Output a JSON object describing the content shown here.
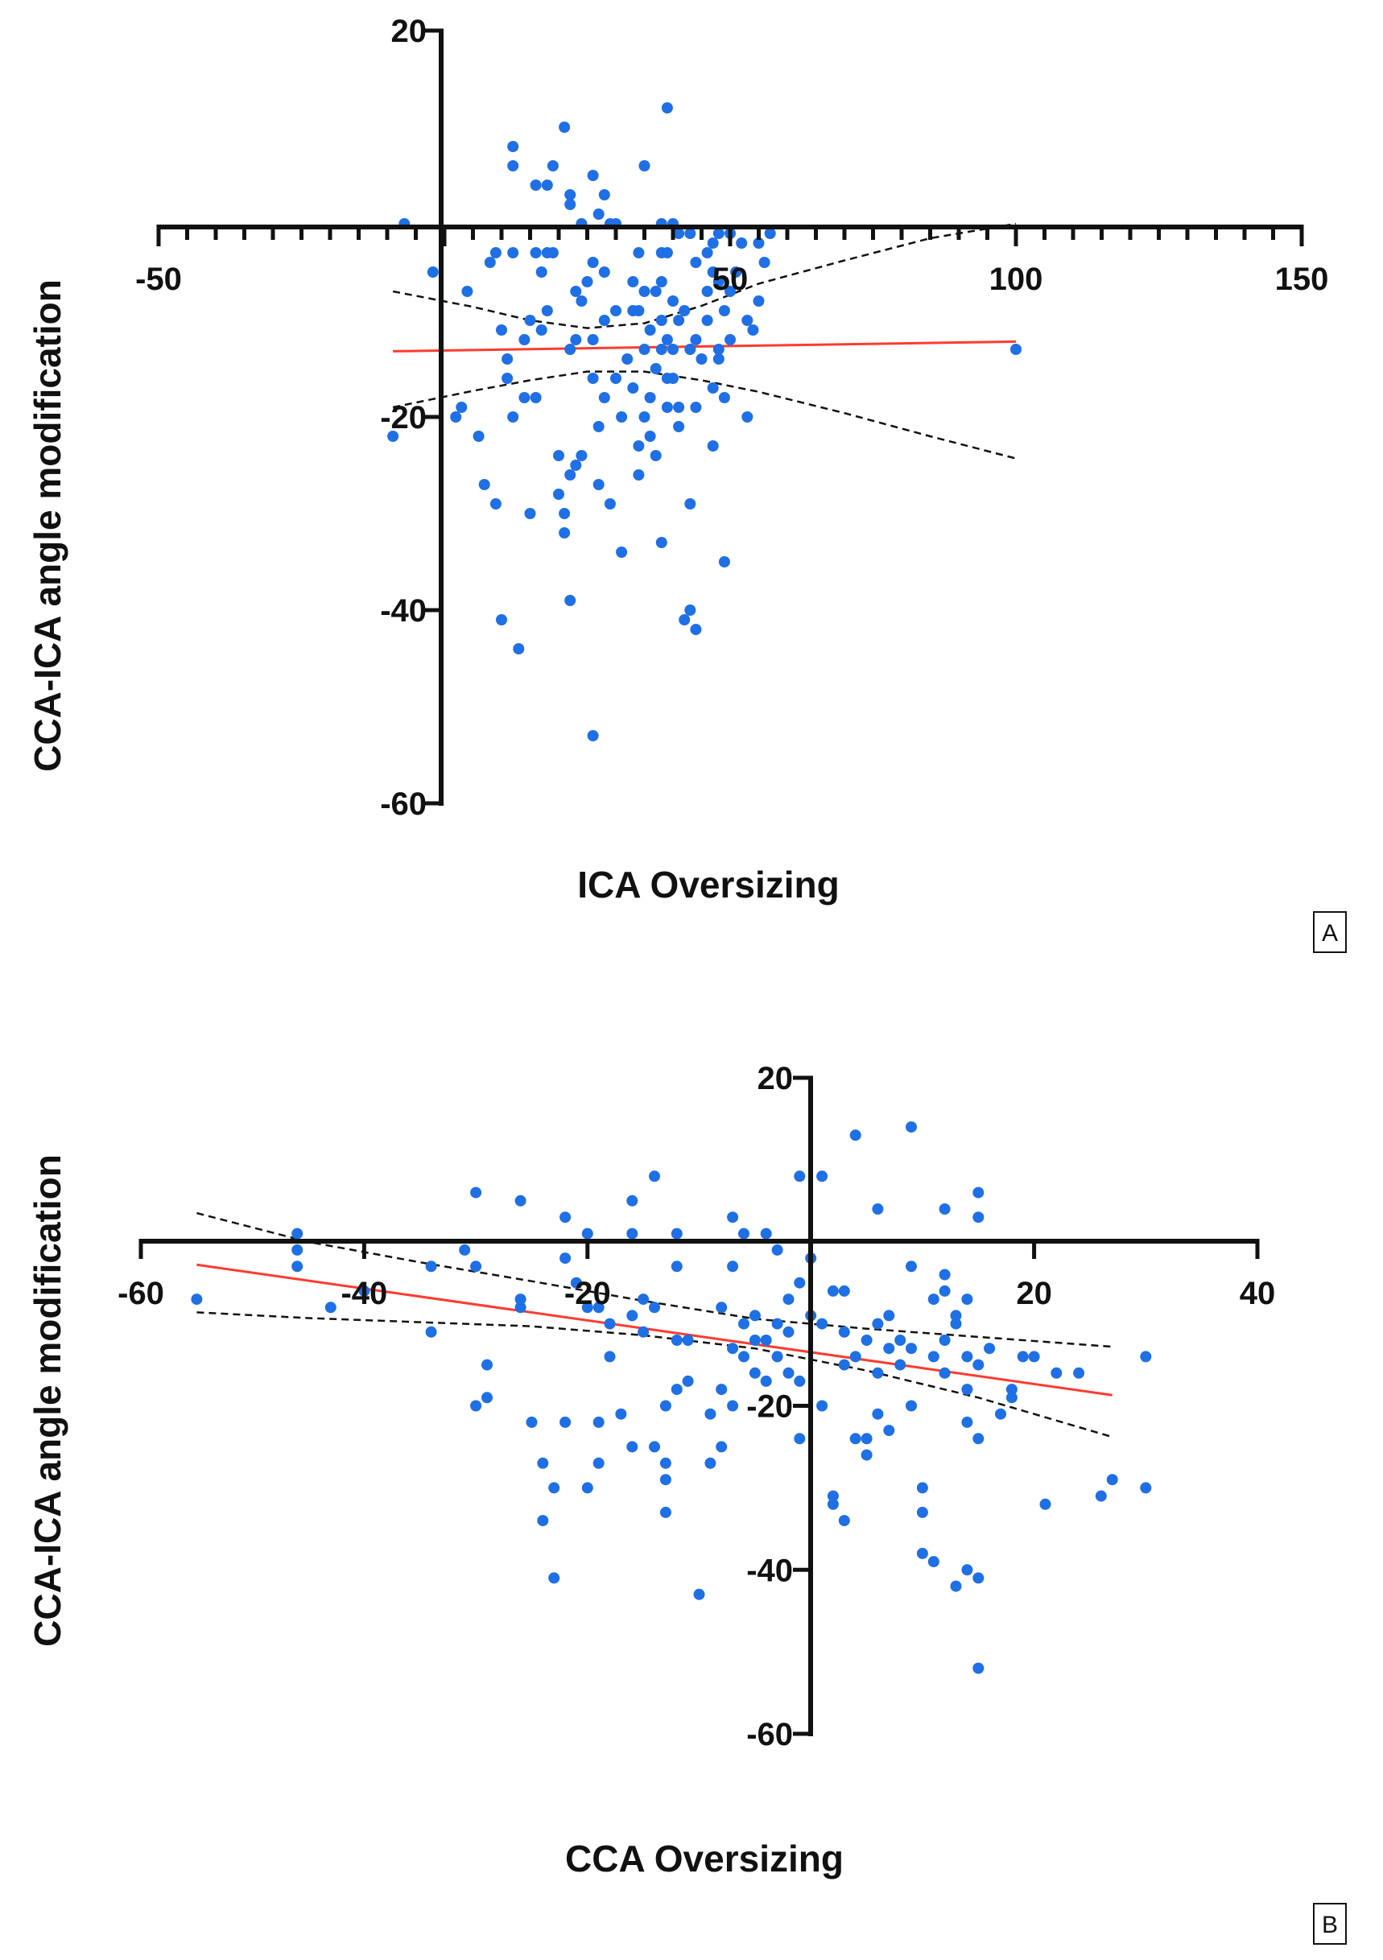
{
  "chart_data": [
    {
      "type": "scatter",
      "panel_label": "A",
      "xlabel": "ICA Oversizing",
      "ylabel": "CCA-ICA angle modification",
      "xlim": [
        -50,
        150
      ],
      "ylim": [
        -60,
        20
      ],
      "x_ticks": [
        -50,
        50,
        100,
        150
      ],
      "y_ticks": [
        20,
        -20,
        -40,
        -60
      ],
      "colors": {
        "points": "#1f6fe5",
        "fit": "#ff3b30",
        "ci": "#111111"
      },
      "points": [
        [
          -7,
          0
        ],
        [
          -2,
          -5
        ],
        [
          -9,
          -22
        ],
        [
          2,
          -20
        ],
        [
          4,
          -7
        ],
        [
          3,
          -19
        ],
        [
          6,
          -22
        ],
        [
          7,
          -27
        ],
        [
          9,
          -29
        ],
        [
          10,
          -41
        ],
        [
          13,
          -44
        ],
        [
          8,
          -4
        ],
        [
          9,
          -3
        ],
        [
          12,
          -3
        ],
        [
          10,
          -11
        ],
        [
          11,
          -16
        ],
        [
          11,
          -14
        ],
        [
          12,
          -20
        ],
        [
          14,
          -12
        ],
        [
          14,
          -18
        ],
        [
          15,
          -10
        ],
        [
          15,
          -30
        ],
        [
          16,
          -3
        ],
        [
          16,
          -18
        ],
        [
          17,
          -5
        ],
        [
          17,
          -11
        ],
        [
          18,
          -3
        ],
        [
          18,
          -9
        ],
        [
          19,
          -3
        ],
        [
          20,
          -24
        ],
        [
          20,
          -28
        ],
        [
          21,
          -30
        ],
        [
          21,
          -32
        ],
        [
          22,
          -13
        ],
        [
          22,
          -26
        ],
        [
          22,
          -39
        ],
        [
          23,
          -7
        ],
        [
          23,
          -12
        ],
        [
          23,
          -25
        ],
        [
          24,
          -8
        ],
        [
          24,
          -24
        ],
        [
          25,
          -6
        ],
        [
          26,
          -4
        ],
        [
          26,
          -12
        ],
        [
          26,
          -16
        ],
        [
          26,
          -53
        ],
        [
          27,
          -21
        ],
        [
          27,
          -27
        ],
        [
          28,
          -5
        ],
        [
          28,
          -10
        ],
        [
          28,
          -18
        ],
        [
          29,
          -29
        ],
        [
          30,
          -9
        ],
        [
          30,
          -16
        ],
        [
          31,
          -20
        ],
        [
          31,
          -34
        ],
        [
          32,
          -14
        ],
        [
          33,
          -6
        ],
        [
          33,
          -9
        ],
        [
          33,
          -17
        ],
        [
          34,
          -3
        ],
        [
          34,
          -9
        ],
        [
          34,
          -23
        ],
        [
          34,
          -26
        ],
        [
          35,
          -13
        ],
        [
          35,
          -7
        ],
        [
          35,
          -20
        ],
        [
          36,
          -11
        ],
        [
          36,
          -18
        ],
        [
          36,
          -22
        ],
        [
          37,
          -7
        ],
        [
          37,
          -15
        ],
        [
          37,
          -24
        ],
        [
          38,
          -3
        ],
        [
          38,
          -6
        ],
        [
          38,
          -10
        ],
        [
          38,
          -13
        ],
        [
          38,
          -33
        ],
        [
          39,
          -3
        ],
        [
          39,
          -12
        ],
        [
          39,
          -16
        ],
        [
          39,
          -19
        ],
        [
          40,
          -8
        ],
        [
          40,
          -13
        ],
        [
          40,
          -16
        ],
        [
          41,
          -10
        ],
        [
          41,
          -19
        ],
        [
          41,
          -21
        ],
        [
          42,
          -9
        ],
        [
          42,
          -41
        ],
        [
          43,
          -1
        ],
        [
          43,
          -13
        ],
        [
          43,
          -29
        ],
        [
          43,
          -40
        ],
        [
          44,
          -4
        ],
        [
          44,
          -12
        ],
        [
          44,
          -19
        ],
        [
          44,
          -42
        ],
        [
          45,
          -14
        ],
        [
          46,
          -3
        ],
        [
          46,
          -7
        ],
        [
          46,
          -10
        ],
        [
          47,
          -2
        ],
        [
          47,
          -5
        ],
        [
          47,
          -17
        ],
        [
          47,
          -23
        ],
        [
          48,
          -1
        ],
        [
          48,
          -6
        ],
        [
          48,
          -13
        ],
        [
          48,
          -14
        ],
        [
          49,
          -9
        ],
        [
          49,
          -35
        ],
        [
          49,
          -18
        ],
        [
          50,
          -1
        ],
        [
          50,
          -7
        ],
        [
          50,
          -12
        ],
        [
          51,
          -5
        ],
        [
          52,
          -2
        ],
        [
          53,
          -10
        ],
        [
          53,
          -20
        ],
        [
          54,
          -11
        ],
        [
          55,
          -2
        ],
        [
          55,
          -8
        ],
        [
          56,
          -4
        ],
        [
          57,
          -1
        ],
        [
          12,
          8
        ],
        [
          12,
          6
        ],
        [
          16,
          4
        ],
        [
          18,
          4
        ],
        [
          19,
          6
        ],
        [
          21,
          10
        ],
        [
          22,
          3
        ],
        [
          22,
          2
        ],
        [
          24,
          0
        ],
        [
          26,
          5
        ],
        [
          27,
          1
        ],
        [
          28,
          3
        ],
        [
          29,
          0
        ],
        [
          30,
          0
        ],
        [
          35,
          6
        ],
        [
          38,
          0
        ],
        [
          39,
          12
        ],
        [
          40,
          0
        ],
        [
          41,
          -1
        ],
        [
          100,
          -13
        ]
      ],
      "fit_line": [
        [
          -9,
          -13.2
        ],
        [
          100,
          -12.2
        ]
      ],
      "ci_upper": [
        [
          -9,
          -7
        ],
        [
          5,
          -8.6
        ],
        [
          15,
          -10
        ],
        [
          25,
          -10.8
        ],
        [
          35,
          -10.3
        ],
        [
          45,
          -8.5
        ],
        [
          55,
          -6.2
        ],
        [
          70,
          -3.8
        ],
        [
          85,
          -1.5
        ],
        [
          100,
          0
        ]
      ],
      "ci_lower": [
        [
          -9,
          -19
        ],
        [
          5,
          -17.3
        ],
        [
          15,
          -16.2
        ],
        [
          25,
          -15.3
        ],
        [
          35,
          -15.3
        ],
        [
          45,
          -16.2
        ],
        [
          55,
          -17.4
        ],
        [
          70,
          -19.6
        ],
        [
          85,
          -22
        ],
        [
          100,
          -24.3
        ]
      ]
    },
    {
      "type": "scatter",
      "panel_label": "B",
      "xlabel": "CCA Oversizing",
      "ylabel": "CCA-ICA angle modification",
      "xlim": [
        -60,
        40
      ],
      "ylim": [
        -60,
        20
      ],
      "x_ticks": [
        -60,
        -40,
        -20,
        20,
        40
      ],
      "y_ticks": [
        20,
        -20,
        -40,
        -60
      ],
      "colors": {
        "points": "#1f6fe5",
        "fit": "#ff3b30",
        "ci": "#111111"
      },
      "points": [
        [
          -55,
          -7
        ],
        [
          -46,
          -1
        ],
        [
          -46,
          -3
        ],
        [
          -43,
          -8
        ],
        [
          -40,
          -6
        ],
        [
          -34,
          -3
        ],
        [
          -34,
          -11
        ],
        [
          -31,
          -1
        ],
        [
          -30,
          -3
        ],
        [
          -30,
          -20
        ],
        [
          -29,
          -15
        ],
        [
          -29,
          -19
        ],
        [
          -26,
          -7
        ],
        [
          -26,
          -8
        ],
        [
          -25,
          -22
        ],
        [
          -24,
          -27
        ],
        [
          -24,
          -34
        ],
        [
          -23,
          -30
        ],
        [
          -23,
          -41
        ],
        [
          -22,
          -2
        ],
        [
          -22,
          -22
        ],
        [
          -21,
          -5
        ],
        [
          -20,
          -30
        ],
        [
          -20,
          -8
        ],
        [
          -19,
          -8
        ],
        [
          -19,
          -22
        ],
        [
          -19,
          -27
        ],
        [
          -18,
          -10
        ],
        [
          -18,
          -14
        ],
        [
          -17,
          -21
        ],
        [
          -16,
          -9
        ],
        [
          -16,
          -25
        ],
        [
          -15,
          -7
        ],
        [
          -15,
          -11
        ],
        [
          -14,
          -8
        ],
        [
          -14,
          -25
        ],
        [
          -13,
          -20
        ],
        [
          -13,
          -27
        ],
        [
          -13,
          -29
        ],
        [
          -13,
          -33
        ],
        [
          -12,
          -3
        ],
        [
          -12,
          -12
        ],
        [
          -12,
          -18
        ],
        [
          -11,
          -12
        ],
        [
          -11,
          -17
        ],
        [
          -10,
          -43
        ],
        [
          -9,
          -21
        ],
        [
          -9,
          -27
        ],
        [
          -8,
          -8
        ],
        [
          -8,
          -18
        ],
        [
          -8,
          -25
        ],
        [
          -7,
          -3
        ],
        [
          -7,
          -13
        ],
        [
          -7,
          -20
        ],
        [
          -6,
          -10
        ],
        [
          -6,
          -14
        ],
        [
          -5,
          -9
        ],
        [
          -5,
          -12
        ],
        [
          -5,
          -16
        ],
        [
          -4,
          -12
        ],
        [
          -4,
          -17
        ],
        [
          -3,
          -1
        ],
        [
          -3,
          -10
        ],
        [
          -3,
          -14
        ],
        [
          -2,
          -7
        ],
        [
          -2,
          -11
        ],
        [
          -2,
          -16
        ],
        [
          -1,
          -5
        ],
        [
          -1,
          -17
        ],
        [
          -1,
          -24
        ],
        [
          0,
          -2
        ],
        [
          0,
          -9
        ],
        [
          1,
          -10
        ],
        [
          1,
          -20
        ],
        [
          2,
          -31
        ],
        [
          2,
          -6
        ],
        [
          2,
          -32
        ],
        [
          3,
          -6
        ],
        [
          3,
          -11
        ],
        [
          3,
          -15
        ],
        [
          3,
          -34
        ],
        [
          4,
          -14
        ],
        [
          4,
          -24
        ],
        [
          5,
          -12
        ],
        [
          5,
          -24
        ],
        [
          5,
          -26
        ],
        [
          6,
          -10
        ],
        [
          6,
          -16
        ],
        [
          6,
          -21
        ],
        [
          7,
          -9
        ],
        [
          7,
          -13
        ],
        [
          7,
          -23
        ],
        [
          8,
          -12
        ],
        [
          8,
          -15
        ],
        [
          9,
          -3
        ],
        [
          9,
          -13
        ],
        [
          9,
          -20
        ],
        [
          10,
          -30
        ],
        [
          10,
          -33
        ],
        [
          10,
          -38
        ],
        [
          11,
          -7
        ],
        [
          11,
          -14
        ],
        [
          11,
          -39
        ],
        [
          12,
          -4
        ],
        [
          12,
          -6
        ],
        [
          12,
          -12
        ],
        [
          12,
          -16
        ],
        [
          13,
          -9
        ],
        [
          13,
          -10
        ],
        [
          13,
          -42
        ],
        [
          14,
          -7
        ],
        [
          14,
          -14
        ],
        [
          14,
          -18
        ],
        [
          14,
          -22
        ],
        [
          14,
          -40
        ],
        [
          15,
          -15
        ],
        [
          15,
          -24
        ],
        [
          15,
          -41
        ],
        [
          16,
          -13
        ],
        [
          17,
          -21
        ],
        [
          18,
          -18
        ],
        [
          18,
          -19
        ],
        [
          19,
          -14
        ],
        [
          20,
          -14
        ],
        [
          21,
          -32
        ],
        [
          22,
          -16
        ],
        [
          24,
          -16
        ],
        [
          26,
          -31
        ],
        [
          27,
          -29
        ],
        [
          30,
          -30
        ],
        [
          30,
          -14
        ],
        [
          -30,
          6
        ],
        [
          -26,
          5
        ],
        [
          -22,
          3
        ],
        [
          -20,
          1
        ],
        [
          -16,
          5
        ],
        [
          -14,
          8
        ],
        [
          -7,
          3
        ],
        [
          -1,
          8
        ],
        [
          1,
          8
        ],
        [
          4,
          13
        ],
        [
          6,
          4
        ],
        [
          9,
          14
        ],
        [
          12,
          4
        ],
        [
          15,
          3
        ],
        [
          15,
          6
        ],
        [
          15,
          -52
        ],
        [
          -46,
          1
        ],
        [
          -16,
          1
        ],
        [
          -12,
          1
        ],
        [
          -4,
          1
        ],
        [
          -6,
          1
        ]
      ],
      "fit_line": [
        [
          -55,
          -2.8
        ],
        [
          27,
          -18.7
        ]
      ],
      "ci_upper": [
        [
          -55,
          3.5
        ],
        [
          -45,
          0
        ],
        [
          -35,
          -2.5
        ],
        [
          -25,
          -4.8
        ],
        [
          -15,
          -7.2
        ],
        [
          -5,
          -9.4
        ],
        [
          5,
          -10.6
        ],
        [
          15,
          -11.6
        ],
        [
          27,
          -12.8
        ]
      ],
      "ci_lower": [
        [
          -55,
          -8.6
        ],
        [
          -45,
          -9.3
        ],
        [
          -35,
          -9.8
        ],
        [
          -25,
          -10.3
        ],
        [
          -15,
          -11.4
        ],
        [
          -5,
          -13
        ],
        [
          5,
          -15.7
        ],
        [
          15,
          -19
        ],
        [
          27,
          -23.8
        ]
      ]
    }
  ]
}
